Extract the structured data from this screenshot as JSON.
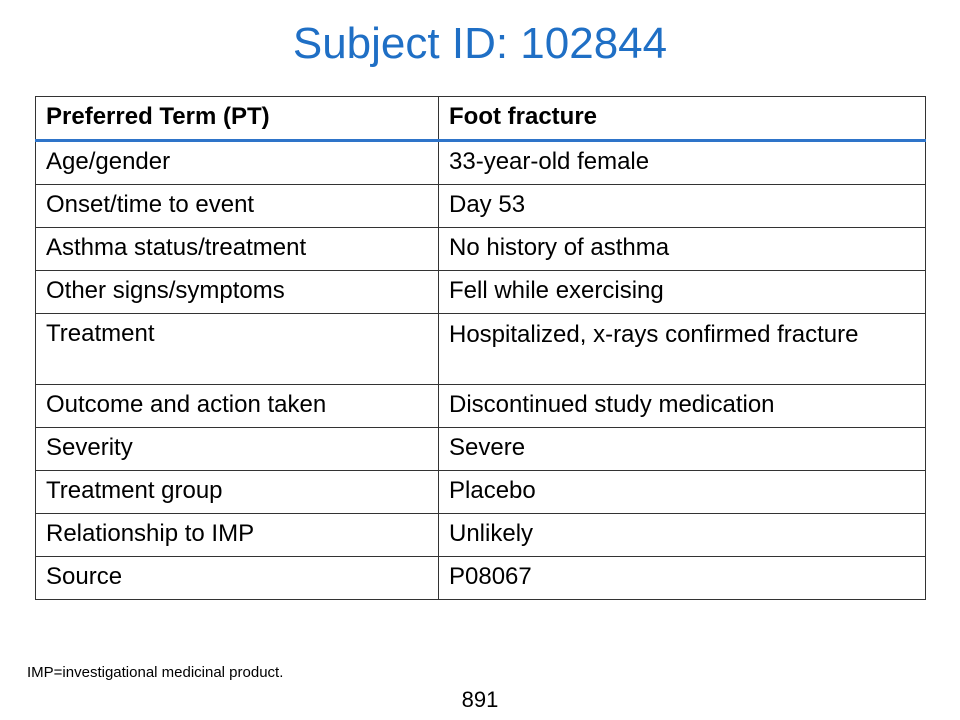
{
  "title": "Subject ID: 102844",
  "table": {
    "header": {
      "label": "Preferred Term (PT)",
      "value": "Foot fracture"
    },
    "rows": [
      {
        "label": "Age/gender",
        "value": "33-year-old female"
      },
      {
        "label": "Onset/time to event",
        "value": "Day 53"
      },
      {
        "label": "Asthma status/treatment",
        "value": "No history of asthma"
      },
      {
        "label": "Other signs/symptoms",
        "value": "Fell while exercising"
      },
      {
        "label": "Treatment",
        "value": "Hospitalized, x-rays confirmed fracture"
      },
      {
        "label": "Outcome and action taken",
        "value": "Discontinued study medication"
      },
      {
        "label": "Severity",
        "value": "Severe"
      },
      {
        "label": "Treatment group",
        "value": "Placebo"
      },
      {
        "label": "Relationship to IMP",
        "value": "Unlikely"
      },
      {
        "label": "Source",
        "value": "P08067"
      }
    ]
  },
  "footnote": "IMP=investigational medicinal product.",
  "page_number": "891",
  "colors": {
    "title": "#1f6fc5",
    "header_rule": "#2e74c9"
  }
}
